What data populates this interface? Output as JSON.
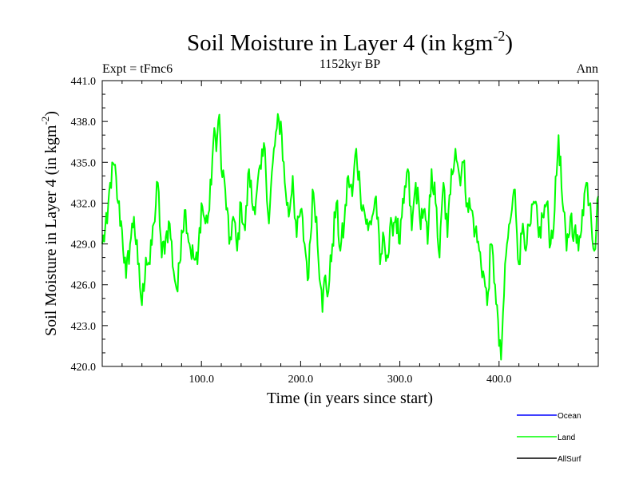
{
  "chart_data": {
    "type": "line",
    "title": "Soil Moisture in Layer 4 (in kgm",
    "title_superscript": "-2",
    "title_close": ")",
    "subtitle": "1152kyr BP",
    "left_label": "Expt = tFmc6",
    "right_label": "Ann",
    "xlabel": "Time (in years since start)",
    "ylabel": "Soil Moisture in Layer 4 (in kgm",
    "ylabel_superscript": "-2",
    "ylabel_close": ")",
    "xlim": [
      0,
      500
    ],
    "ylim": [
      420.0,
      441.0
    ],
    "x_ticks": [
      100,
      200,
      300,
      400
    ],
    "x_tick_labels": [
      "100.0",
      "200.0",
      "300.0",
      "400.0"
    ],
    "y_ticks": [
      420,
      423,
      426,
      429,
      432,
      435,
      438,
      441
    ],
    "y_tick_labels": [
      "420.0",
      "423.0",
      "426.0",
      "429.0",
      "432.0",
      "435.0",
      "438.0",
      "441.0"
    ],
    "legend": [
      {
        "name": "Ocean",
        "color": "#0000ff"
      },
      {
        "name": "Land",
        "color": "#00ff00"
      },
      {
        "name": "AllSurf",
        "color": "#000000"
      }
    ],
    "series": [
      {
        "name": "Land",
        "color": "#00ff00",
        "x": [
          0,
          5,
          8,
          12,
          16,
          20,
          24,
          28,
          32,
          36,
          40,
          44,
          48,
          52,
          56,
          60,
          64,
          68,
          72,
          76,
          80,
          84,
          88,
          92,
          96,
          100,
          104,
          108,
          112,
          116,
          118,
          120,
          124,
          128,
          132,
          136,
          140,
          144,
          148,
          152,
          156,
          160,
          164,
          168,
          172,
          176,
          180,
          184,
          188,
          192,
          196,
          200,
          204,
          208,
          212,
          216,
          220,
          222,
          224,
          228,
          232,
          236,
          240,
          244,
          248,
          252,
          256,
          260,
          264,
          268,
          272,
          276,
          280,
          284,
          288,
          292,
          296,
          300,
          304,
          308,
          312,
          316,
          320,
          324,
          328,
          332,
          336,
          340,
          344,
          348,
          352,
          356,
          360,
          364,
          368,
          372,
          376,
          380,
          384,
          388,
          392,
          396,
          398,
          400,
          402,
          404,
          408,
          412,
          416,
          420,
          424,
          428,
          432,
          436,
          440,
          444,
          448,
          452,
          456,
          460,
          464,
          468,
          472,
          476,
          480,
          484,
          488,
          492,
          496,
          500
        ],
        "values": [
          429.0,
          430.5,
          433.5,
          434.8,
          432.0,
          430.0,
          426.5,
          429.0,
          431.0,
          427.5,
          424.5,
          428.0,
          427.5,
          430.5,
          433.5,
          428.0,
          429.5,
          430.5,
          427.0,
          425.5,
          430.0,
          431.5,
          429.0,
          428.0,
          427.5,
          432.0,
          430.5,
          431.5,
          436.5,
          437.0,
          438.5,
          434.5,
          433.0,
          429.0,
          431.0,
          428.5,
          432.0,
          430.0,
          434.5,
          431.5,
          433.0,
          434.5,
          436.0,
          430.5,
          435.0,
          437.5,
          438.0,
          433.5,
          431.0,
          434.0,
          429.5,
          431.5,
          429.0,
          426.5,
          433.0,
          431.0,
          426.0,
          424.0,
          426.5,
          425.5,
          429.0,
          432.0,
          428.5,
          430.5,
          434.0,
          432.5,
          436.0,
          433.0,
          431.5,
          430.0,
          431.0,
          432.5,
          427.5,
          429.5,
          428.0,
          430.5,
          431.0,
          429.0,
          432.0,
          434.5,
          430.0,
          433.5,
          431.0,
          431.5,
          429.0,
          434.5,
          432.0,
          428.0,
          433.5,
          429.5,
          434.5,
          436.0,
          434.0,
          435.0,
          432.0,
          431.5,
          430.0,
          428.5,
          427.0,
          424.5,
          429.0,
          426.0,
          424.5,
          421.5,
          420.5,
          424.0,
          429.0,
          431.0,
          433.0,
          427.5,
          430.5,
          429.0,
          430.5,
          432.0,
          429.5,
          431.0,
          432.0,
          429.0,
          431.5,
          437.0,
          432.0,
          428.5,
          431.0,
          430.0,
          428.5,
          431.5,
          433.5,
          432.0,
          428.5,
          432.5
        ]
      }
    ]
  }
}
